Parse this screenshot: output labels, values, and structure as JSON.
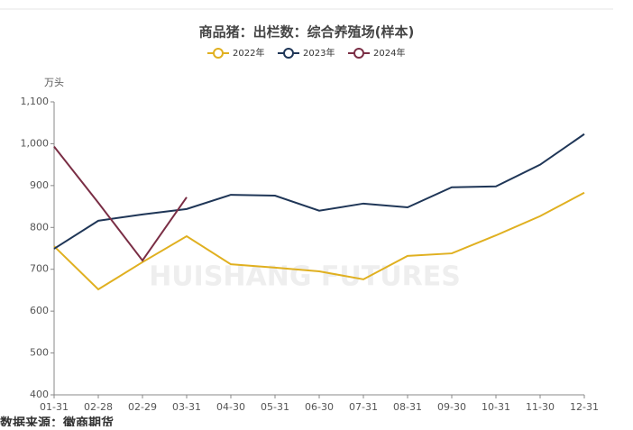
{
  "chart_data": {
    "type": "line",
    "title": "商品猪：出栏数：综合养殖场(样本)",
    "y_unit": "万头",
    "watermark": "HUISHANG FUTURES",
    "source": "数据来源：徽商期货",
    "categories": [
      "01-31",
      "02-28",
      "02-29",
      "03-31",
      "04-30",
      "05-31",
      "06-30",
      "07-31",
      "08-31",
      "09-30",
      "10-31",
      "11-30",
      "12-31"
    ],
    "series": [
      {
        "name": "2022年",
        "color": "#e0b020",
        "values": [
          755,
          652,
          717,
          779,
          712,
          704,
          695,
          676,
          732,
          738,
          781,
          827,
          883
        ]
      },
      {
        "name": "2023年",
        "color": "#1f3657",
        "values": [
          749,
          816,
          831,
          844,
          878,
          876,
          840,
          857,
          848,
          896,
          898,
          950,
          1023
        ]
      },
      {
        "name": "2024年",
        "color": "#7a2e45",
        "values": [
          993,
          859,
          721,
          872,
          null,
          null,
          null,
          null,
          null,
          null,
          null,
          null,
          null
        ]
      }
    ],
    "ylim": [
      400,
      1100
    ],
    "yticks": [
      400,
      500,
      600,
      700,
      800,
      900,
      {
        "value": 1000,
        "label": "1,000"
      },
      {
        "value": 1100,
        "label": "1,100"
      }
    ],
    "grid": false
  }
}
